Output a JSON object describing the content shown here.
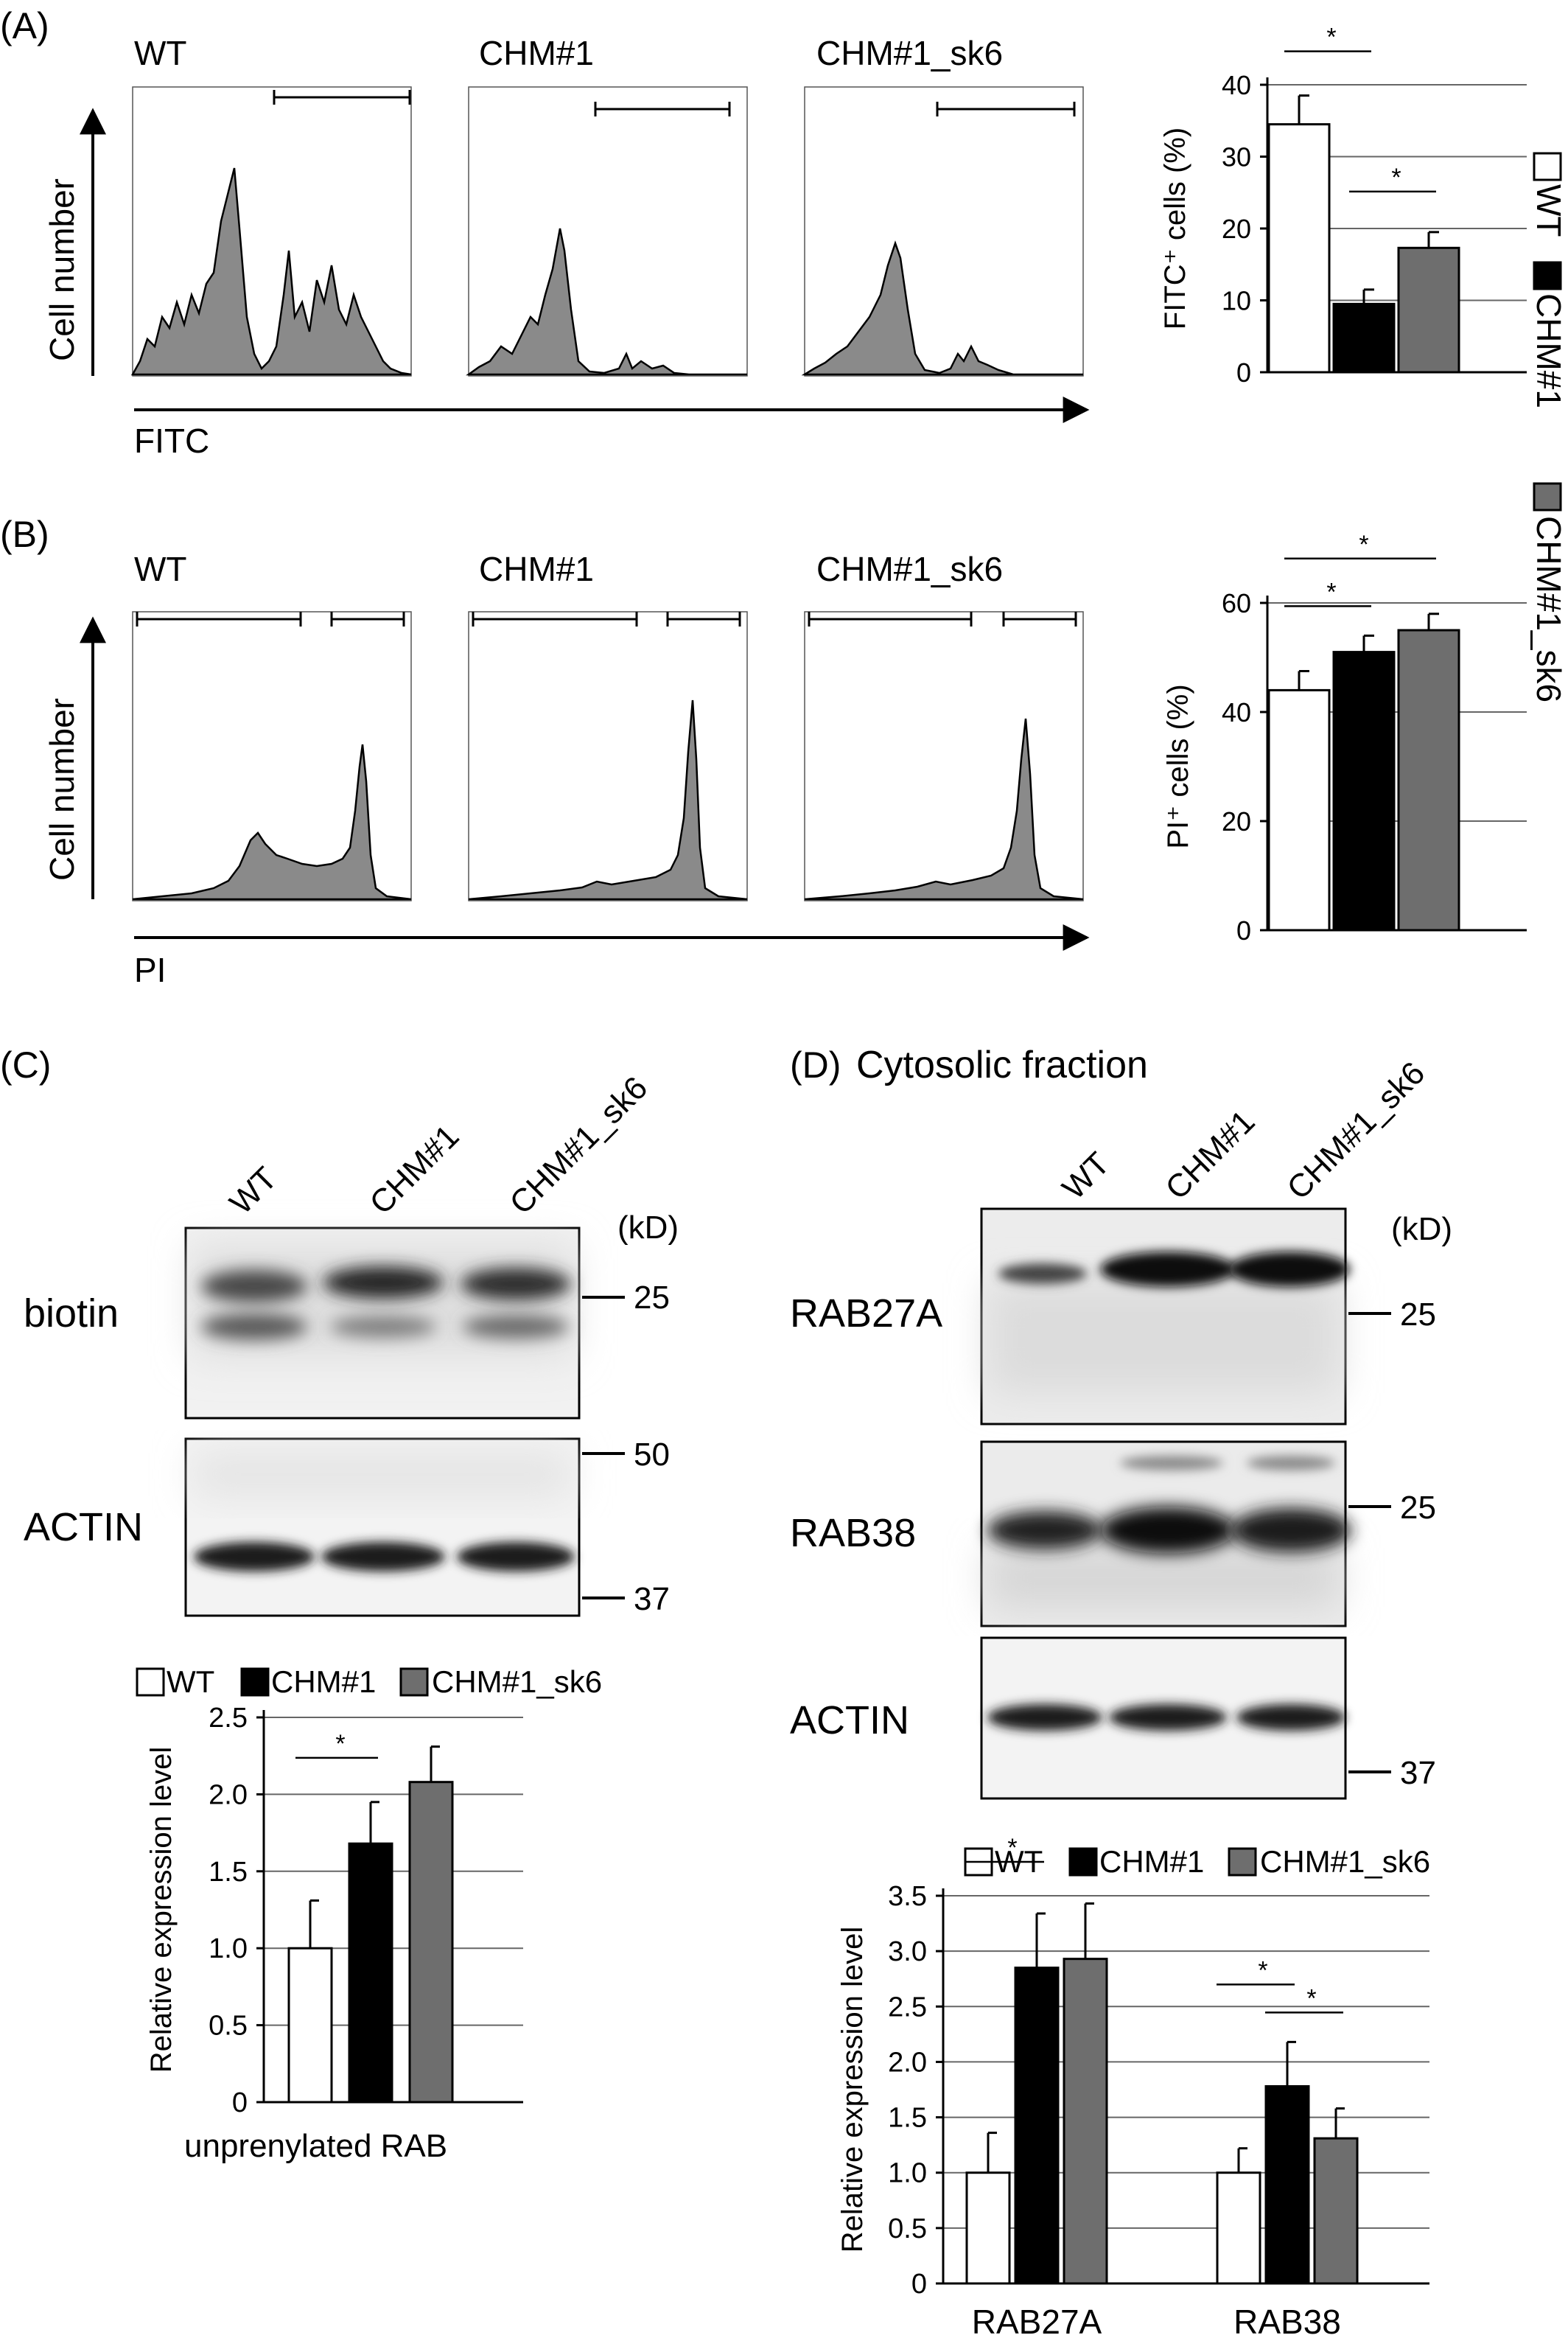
{
  "legend": {
    "wt": "WT",
    "chm1": "CHM#1",
    "chm1_sk6": "CHM#1_sk6"
  },
  "colors": {
    "wt": "#ffffff",
    "chm1": "#000000",
    "chm1_sk6": "#6e6e6e",
    "histogram_fill": "#888888"
  },
  "panelA": {
    "label": "(A)",
    "y_axis_label": "Cell number",
    "x_axis_label": "FITC",
    "samples": [
      "WT",
      "CHM#1",
      "CHM#1_sk6"
    ]
  },
  "panelB": {
    "label": "(B)",
    "y_axis_label": "Cell number",
    "x_axis_label": "PI",
    "samples": [
      "WT",
      "CHM#1",
      "CHM#1_sk6"
    ]
  },
  "panelC": {
    "label": "(C)",
    "lanes": [
      "WT",
      "CHM#1",
      "CHM#1_sk6"
    ],
    "kd_unit": "(kD)",
    "blots": [
      {
        "name": "biotin",
        "markers": [
          "25"
        ]
      },
      {
        "name": "ACTIN",
        "markers": [
          "50",
          "37"
        ]
      }
    ]
  },
  "panelD": {
    "label": "(D)",
    "title": "Cytosolic fraction",
    "lanes": [
      "WT",
      "CHM#1",
      "CHM#1_sk6"
    ],
    "kd_unit": "(kD)",
    "blots": [
      {
        "name": "RAB27A",
        "markers": [
          "25"
        ]
      },
      {
        "name": "RAB38",
        "markers": [
          "25"
        ]
      },
      {
        "name": "ACTIN",
        "markers": [
          "37"
        ]
      }
    ]
  },
  "chart_data": [
    {
      "id": "A",
      "type": "bar",
      "categories": [
        "WT",
        "CHM#1",
        "CHM#1_sk6"
      ],
      "values": [
        34.5,
        9.5,
        17.3
      ],
      "errors": [
        4.0,
        2.0,
        2.2
      ],
      "ylabel": "FITC⁺ cells (%)",
      "ylim": [
        0,
        40
      ],
      "yticks": [
        "0",
        "10",
        "20",
        "30",
        "40"
      ],
      "significance": [
        "*",
        "*"
      ]
    },
    {
      "id": "B",
      "type": "bar",
      "categories": [
        "WT",
        "CHM#1",
        "CHM#1_sk6"
      ],
      "values": [
        44,
        51,
        55
      ],
      "errors": [
        3.5,
        3.0,
        3.0
      ],
      "ylabel": "PI⁺ cells (%)",
      "ylim": [
        0,
        60
      ],
      "yticks": [
        "0",
        "20",
        "40",
        "60"
      ],
      "significance": [
        "*",
        "*"
      ]
    },
    {
      "id": "C",
      "type": "bar",
      "categories": [
        "WT",
        "CHM#1",
        "CHM#1_sk6"
      ],
      "values": [
        1.0,
        1.68,
        2.08
      ],
      "errors": [
        0.31,
        0.27,
        0.23
      ],
      "ylabel": "Relative expression level",
      "xlabel": "unprenylated RAB",
      "ylim": [
        0,
        2.5
      ],
      "yticks": [
        "0",
        "0.5",
        "1.0",
        "1.5",
        "2.0",
        "2.5"
      ],
      "significance": [
        "*"
      ]
    },
    {
      "id": "D",
      "type": "bar",
      "categories": [
        "RAB27A",
        "RAB38"
      ],
      "series": [
        {
          "name": "WT",
          "values": [
            1.0,
            1.0
          ],
          "errors": [
            0.36,
            0.22
          ]
        },
        {
          "name": "CHM#1",
          "values": [
            2.85,
            1.78
          ],
          "errors": [
            0.49,
            0.4
          ]
        },
        {
          "name": "CHM#1_sk6",
          "values": [
            2.93,
            1.31
          ],
          "errors": [
            0.5,
            0.27
          ]
        }
      ],
      "ylabel": "Relative expression level",
      "ylim": [
        0,
        3.5
      ],
      "yticks": [
        "0",
        "0.5",
        "1.0",
        "1.5",
        "2.0",
        "2.5",
        "3.0",
        "3.5"
      ],
      "significance": [
        "*",
        "*",
        "*"
      ]
    }
  ]
}
